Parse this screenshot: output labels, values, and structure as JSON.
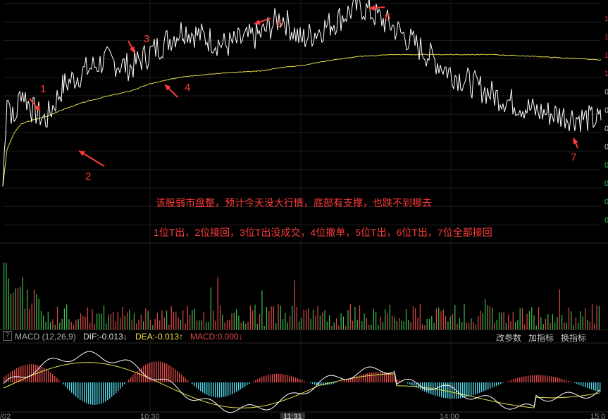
{
  "annotations": {
    "line1": "该股弱市盘整，预计今天没大行情，底部有支撑，也跌不到哪去",
    "line2": "1位T出，2位接回，3位T出没成交，4位撤单，5位T出，6位T出，7位全部接回"
  },
  "markers": [
    "1",
    "2",
    "3",
    "4",
    "5",
    "6",
    "7"
  ],
  "toolbar": {
    "question_icon": "?",
    "indicator": "MACD (12,26,9)",
    "dif": "DIF:-0.013",
    "dif_arrow": "↓",
    "dea": "DEA:-0.013",
    "dea_arrow": "↑",
    "macd": "MACD:0.000",
    "macd_arrow": "↓",
    "btn_params": "改参数",
    "btn_add": "加指标",
    "btn_switch": "换指标"
  },
  "xaxis": [
    "/02",
    "10:30",
    "11:31",
    "14:00",
    "15:0"
  ],
  "colors": {
    "price": "#ffffff",
    "avg": "#e6e04a",
    "up": "#e04848",
    "down": "#3fbf4f",
    "macd_neg": "#4fd6e6",
    "note": "#ff3b3b"
  },
  "chart_data": {
    "type": "line",
    "x": [
      "09:30",
      "09:31",
      "09:33",
      "09:35",
      "09:38",
      "09:42",
      "09:47",
      "09:55",
      "10:05",
      "10:15",
      "10:30",
      "10:45",
      "11:00",
      "11:10",
      "11:20",
      "11:30",
      "13:10",
      "13:25",
      "13:40",
      "14:00",
      "14:15",
      "14:30",
      "14:45",
      "15:00"
    ],
    "series": [
      {
        "key": "price",
        "values": [
          1.0,
          6.1,
          4.4,
          6.3,
          5.2,
          4.6,
          6.5,
          7.3,
          7.9,
          7.5,
          8.3,
          9.6,
          8.7,
          9.3,
          10.3,
          9.0,
          9.9,
          10.9,
          9.8,
          7.2,
          6.0,
          5.1,
          4.8,
          4.6
        ]
      },
      {
        "key": "avg",
        "values": [
          1.0,
          3.0,
          3.9,
          4.4,
          4.6,
          4.8,
          5.2,
          5.6,
          5.9,
          6.2,
          6.6,
          7.0,
          7.2,
          7.3,
          7.5,
          7.6,
          7.9,
          8.1,
          8.2,
          8.2,
          8.2,
          8.1,
          8.0,
          7.9
        ]
      }
    ],
    "markers": [
      {
        "label": "1",
        "x": "09:38"
      },
      {
        "label": "2",
        "x": "09:55"
      },
      {
        "label": "3",
        "x": "10:15"
      },
      {
        "label": "4",
        "x": "10:30"
      },
      {
        "label": "5",
        "x": "11:00"
      },
      {
        "label": "6",
        "x": "13:25"
      },
      {
        "label": "7",
        "x": "14:45"
      }
    ],
    "macd_dif": -0.013,
    "macd_dea": -0.013,
    "macd_value": 0.0
  }
}
